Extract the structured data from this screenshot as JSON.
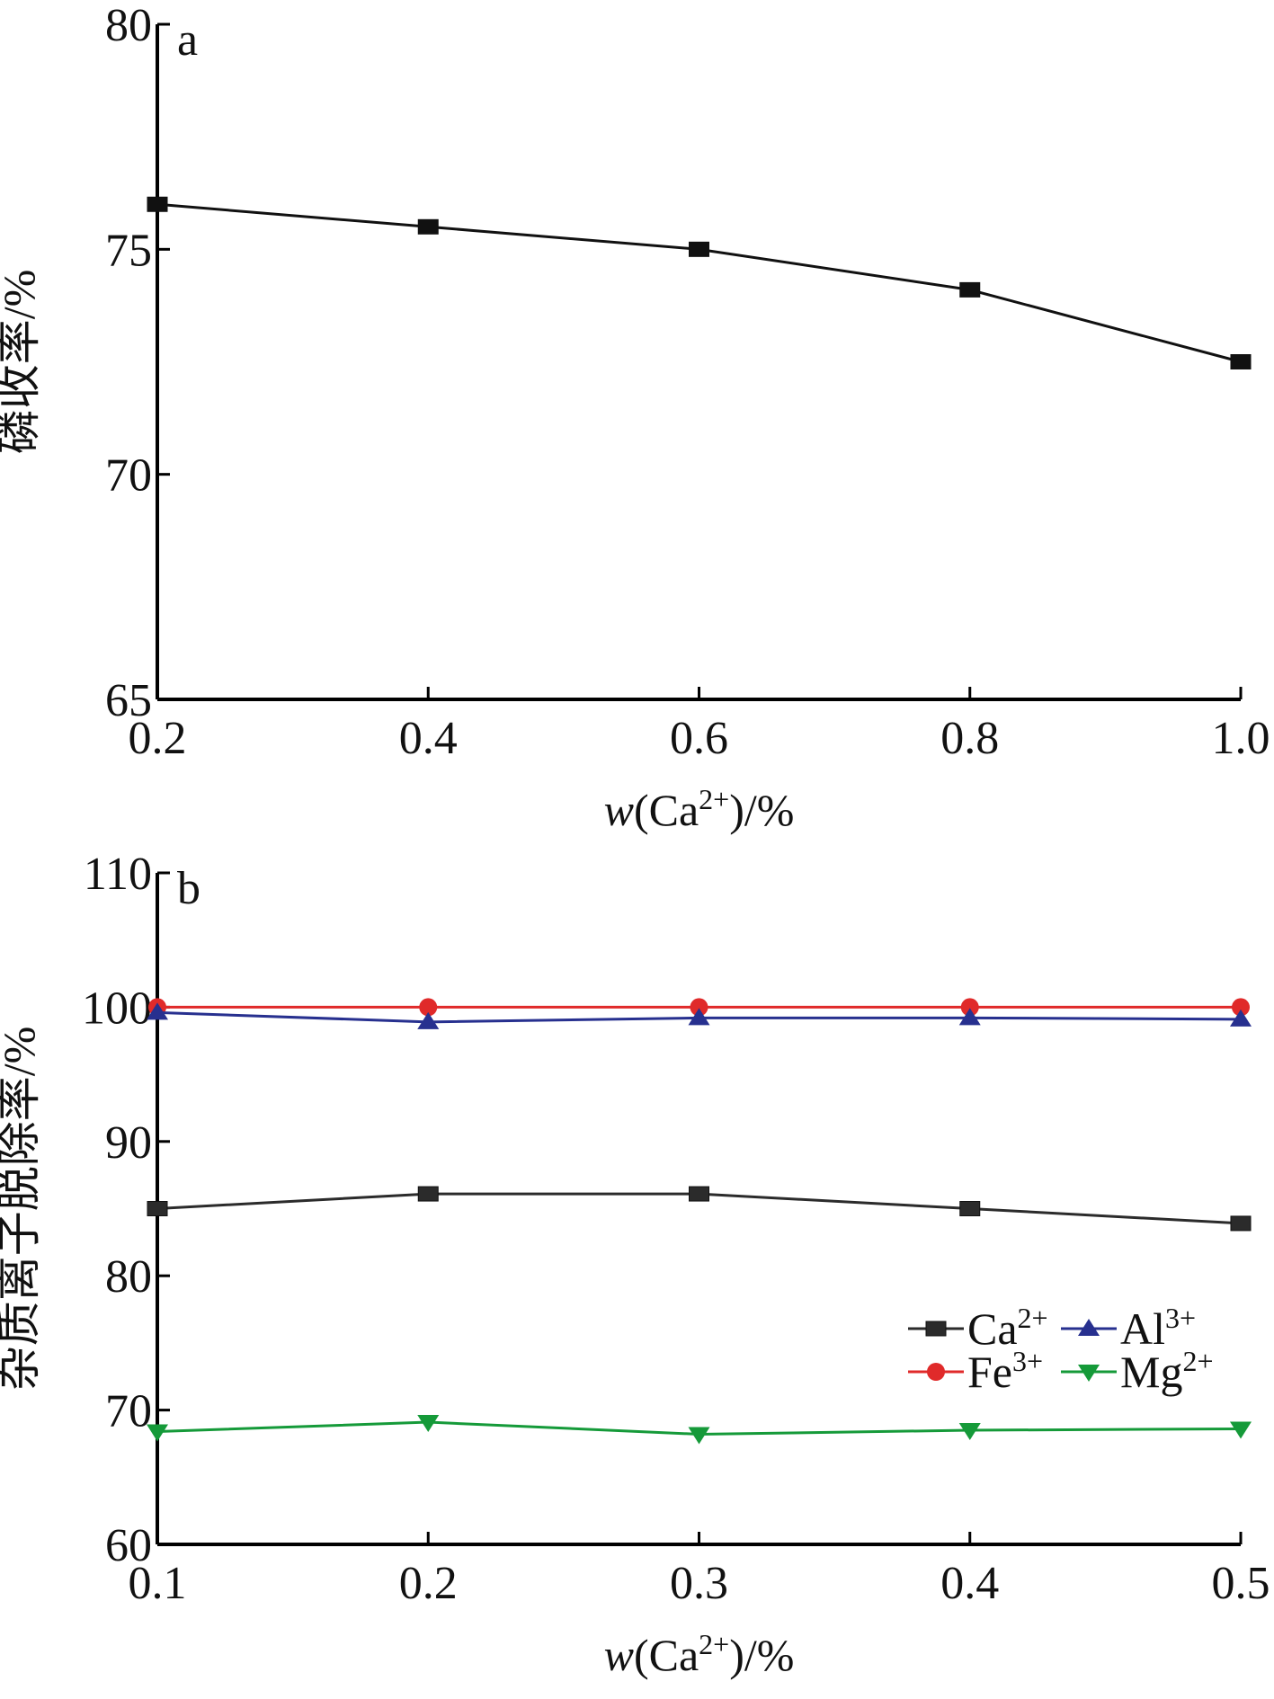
{
  "chart_data": [
    {
      "type": "line",
      "panel_label": "a",
      "xlabel": "w(Ca2+)/%",
      "ylabel": "磷收率/%",
      "x": [
        0.2,
        0.4,
        0.6,
        0.8,
        1.0
      ],
      "xlim": [
        0.2,
        1.0
      ],
      "ylim": [
        65,
        80
      ],
      "xticks": [
        "0.2",
        "0.4",
        "0.6",
        "0.8",
        "1.0"
      ],
      "yticks": [
        "65",
        "70",
        "75",
        "80"
      ],
      "grid": false,
      "series": [
        {
          "values": [
            76.0,
            75.5,
            75.0,
            74.1,
            72.5
          ],
          "color": "#111111",
          "marker": "square"
        }
      ]
    },
    {
      "type": "line",
      "panel_label": "b",
      "xlabel": "w(Ca2+)/%",
      "ylabel": "杂质离子脱除率/%",
      "x": [
        0.1,
        0.2,
        0.3,
        0.4,
        0.5
      ],
      "xlim": [
        0.1,
        0.5
      ],
      "ylim": [
        60,
        110
      ],
      "xticks": [
        "0.1",
        "0.2",
        "0.3",
        "0.4",
        "0.5"
      ],
      "yticks": [
        "60",
        "70",
        "80",
        "90",
        "100",
        "110"
      ],
      "grid": false,
      "legend_position": "lower-right",
      "series": [
        {
          "name": "Ca2+",
          "values": [
            85.0,
            86.1,
            86.1,
            85.0,
            83.9
          ],
          "color": "#2b2b2b",
          "marker": "square"
        },
        {
          "name": "Fe3+",
          "values": [
            100.0,
            100.0,
            100.0,
            100.0,
            100.0
          ],
          "color": "#e02a2a",
          "marker": "circle"
        },
        {
          "name": "Al3+",
          "values": [
            99.6,
            98.9,
            99.2,
            99.2,
            99.1
          ],
          "color": "#27308f",
          "marker": "triangle-up"
        },
        {
          "name": "Mg2+",
          "values": [
            68.4,
            69.1,
            68.2,
            68.5,
            68.6
          ],
          "color": "#159a39",
          "marker": "triangle-down"
        }
      ]
    }
  ]
}
